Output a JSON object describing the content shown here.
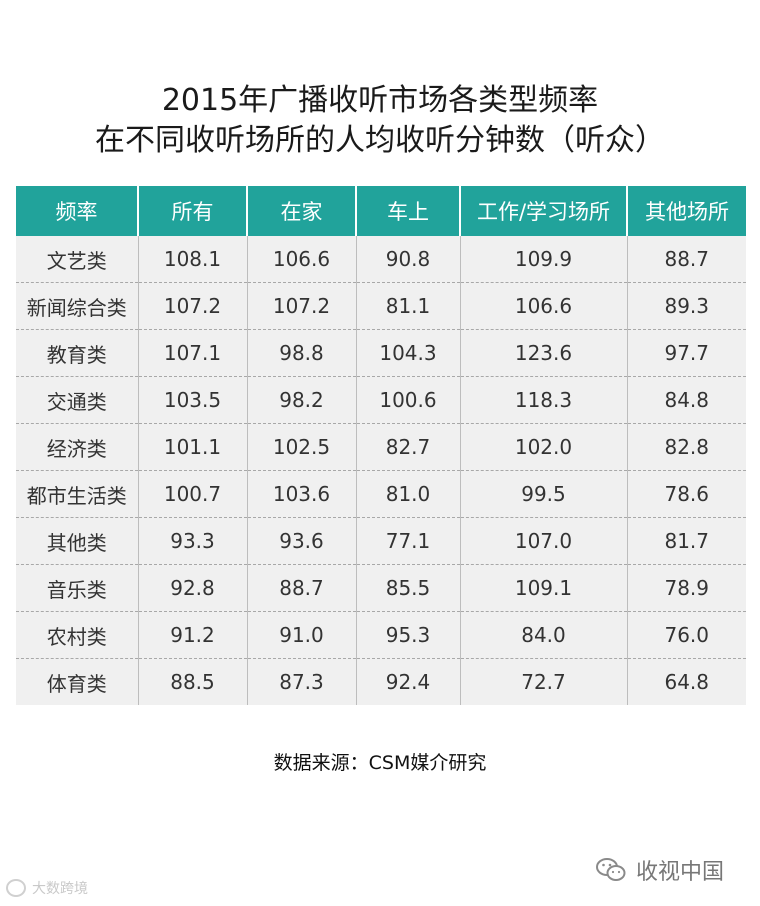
{
  "title": {
    "line1": "2015年广播收听市场各类型频率",
    "line2": "在不同收听场所的人均收听分钟数（听众）"
  },
  "table": {
    "headers": [
      "频率",
      "所有",
      "在家",
      "车上",
      "工作/学习场所",
      "其他场所"
    ],
    "rows": [
      [
        "文艺类",
        "108.1",
        "106.6",
        "90.8",
        "109.9",
        "88.7"
      ],
      [
        "新闻综合类",
        "107.2",
        "107.2",
        "81.1",
        "106.6",
        "89.3"
      ],
      [
        "教育类",
        "107.1",
        "98.8",
        "104.3",
        "123.6",
        "97.7"
      ],
      [
        "交通类",
        "103.5",
        "98.2",
        "100.6",
        "118.3",
        "84.8"
      ],
      [
        "经济类",
        "101.1",
        "102.5",
        "82.7",
        "102.0",
        "82.8"
      ],
      [
        "都市生活类",
        "100.7",
        "103.6",
        "81.0",
        "99.5",
        "78.6"
      ],
      [
        "其他类",
        "93.3",
        "93.6",
        "77.1",
        "107.0",
        "81.7"
      ],
      [
        "音乐类",
        "92.8",
        "88.7",
        "85.5",
        "109.1",
        "78.9"
      ],
      [
        "农村类",
        "91.2",
        "91.0",
        "95.3",
        "84.0",
        "76.0"
      ],
      [
        "体育类",
        "88.5",
        "87.3",
        "92.4",
        "72.7",
        "64.8"
      ]
    ]
  },
  "source": "数据来源：CSM媒介研究",
  "wechat": {
    "icon": "wechat-icon",
    "label": "收视中国"
  },
  "watermark": {
    "text": "大数跨境"
  },
  "colors": {
    "header_bg": "#21a39b",
    "cell_bg": "#f0f0f0"
  }
}
